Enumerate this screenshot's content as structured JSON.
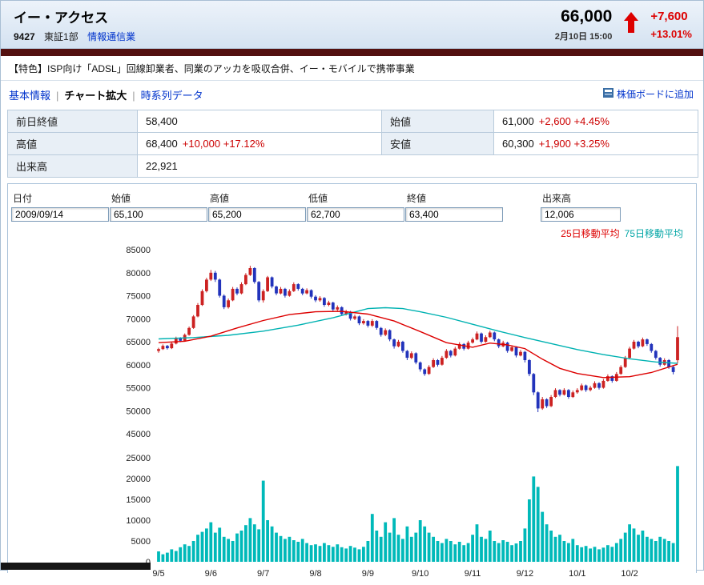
{
  "header": {
    "company_name": "イー・アクセス",
    "code": "9427",
    "exchange": "東証1部",
    "sector": "情報通信業",
    "price": "66,000",
    "datetime": "2月10日 15:00",
    "change": "+7,600",
    "change_pct": "+13.01%"
  },
  "feature": "【特色】ISP向け「ADSL」回線卸業者、同業のアッカを吸収合併、イー・モバイルで携帯事業",
  "nav": {
    "items": [
      {
        "label": "基本情報"
      },
      {
        "label": "チャート拡大"
      },
      {
        "label": "時系列データ"
      }
    ],
    "add_board": "株価ボードに追加"
  },
  "summary": {
    "prev_close_label": "前日終値",
    "prev_close": "58,400",
    "open_label": "始値",
    "open_value": "61,000",
    "open_change": "+2,600 +4.45%",
    "high_label": "高値",
    "high_value": "68,400",
    "high_change": "+10,000 +17.12%",
    "low_label": "安値",
    "low_value": "60,300",
    "low_change": "+1,900 +3.25%",
    "volume_label": "出来高",
    "volume_value": "22,921"
  },
  "quote": {
    "cols": [
      {
        "label": "日付",
        "value": "2009/09/14"
      },
      {
        "label": "始値",
        "value": "65,100"
      },
      {
        "label": "高値",
        "value": "65,200"
      },
      {
        "label": "低値",
        "value": "62,700"
      },
      {
        "label": "終値",
        "value": "63,400"
      },
      {
        "label": "出来高",
        "value": "12,006"
      }
    ]
  },
  "legend": {
    "ma25": "25日移動平均",
    "ma75": "75日移動平均"
  },
  "chart_data": {
    "type": "candlestick",
    "x_ticks": [
      "9/5",
      "9/6",
      "9/7",
      "9/8",
      "9/9",
      "9/10",
      "9/11",
      "9/12",
      "10/1",
      "10/2"
    ],
    "tick_interval": 12,
    "price_axis_ticks": [
      85000,
      80000,
      75000,
      70000,
      65000,
      60000,
      55000,
      50000,
      45000
    ],
    "volume_axis_ticks": [
      25000,
      20000,
      15000,
      10000,
      5000,
      0
    ],
    "colors": {
      "up": "#cc2222",
      "down": "#2233bb",
      "ma25": "#dd0000",
      "ma75": "#00b2b2",
      "volume": "#00b9b9"
    },
    "candles": [
      [
        63000,
        63700,
        62600,
        63400
      ],
      [
        63400,
        64400,
        63200,
        64100
      ],
      [
        64100,
        64300,
        63300,
        63600
      ],
      [
        63600,
        64900,
        63400,
        64600
      ],
      [
        64600,
        66100,
        64400,
        65800
      ],
      [
        65800,
        66000,
        64900,
        65200
      ],
      [
        65200,
        66800,
        65000,
        66500
      ],
      [
        66500,
        68300,
        66300,
        68000
      ],
      [
        68000,
        70800,
        67800,
        70500
      ],
      [
        70500,
        73400,
        70300,
        73000
      ],
      [
        73000,
        76400,
        72800,
        76000
      ],
      [
        76000,
        78900,
        75700,
        78500
      ],
      [
        78500,
        80600,
        78200,
        80000
      ],
      [
        80000,
        80400,
        78000,
        78500
      ],
      [
        78500,
        78700,
        74600,
        75000
      ],
      [
        75000,
        75300,
        72100,
        72500
      ],
      [
        72500,
        74400,
        72200,
        74000
      ],
      [
        74000,
        76900,
        73800,
        76500
      ],
      [
        76500,
        76800,
        75100,
        75500
      ],
      [
        75500,
        77900,
        75300,
        77500
      ],
      [
        77500,
        79900,
        77300,
        79500
      ],
      [
        79500,
        81500,
        79300,
        81000
      ],
      [
        81000,
        81200,
        77600,
        78000
      ],
      [
        78000,
        78200,
        73600,
        74000
      ],
      [
        74000,
        76400,
        73500,
        76000
      ],
      [
        76000,
        79300,
        75800,
        79000
      ],
      [
        79000,
        79200,
        76600,
        77000
      ],
      [
        77000,
        77200,
        75100,
        75500
      ],
      [
        75500,
        76900,
        75300,
        76500
      ],
      [
        76500,
        76700,
        74600,
        75000
      ],
      [
        75000,
        76400,
        74800,
        76000
      ],
      [
        76000,
        77900,
        75800,
        77500
      ],
      [
        77500,
        77700,
        76100,
        76500
      ],
      [
        76500,
        76700,
        75100,
        75500
      ],
      [
        75500,
        76600,
        75300,
        76200
      ],
      [
        76200,
        76400,
        74400,
        74800
      ],
      [
        74800,
        75100,
        73600,
        74000
      ],
      [
        74000,
        74900,
        73700,
        74500
      ],
      [
        74500,
        74700,
        72600,
        73000
      ],
      [
        73000,
        73900,
        72700,
        73500
      ],
      [
        73500,
        73700,
        71600,
        72000
      ],
      [
        72000,
        72900,
        71700,
        72500
      ],
      [
        72500,
        72700,
        70600,
        71000
      ],
      [
        71000,
        71900,
        70700,
        71500
      ],
      [
        71500,
        71700,
        69600,
        70000
      ],
      [
        70000,
        70900,
        69700,
        70500
      ],
      [
        70500,
        70700,
        68600,
        69000
      ],
      [
        69000,
        69900,
        68700,
        69500
      ],
      [
        69500,
        69700,
        68100,
        68500
      ],
      [
        68500,
        69900,
        68200,
        69500
      ],
      [
        69500,
        69700,
        67600,
        68000
      ],
      [
        68000,
        68200,
        66100,
        66500
      ],
      [
        66500,
        67900,
        66200,
        67500
      ],
      [
        67500,
        67700,
        65100,
        65500
      ],
      [
        65500,
        65700,
        63500,
        64000
      ],
      [
        64000,
        65400,
        63800,
        65000
      ],
      [
        65000,
        65200,
        62600,
        63000
      ],
      [
        63000,
        63200,
        61000,
        61500
      ],
      [
        61500,
        62900,
        61200,
        62500
      ],
      [
        62500,
        62700,
        60100,
        60500
      ],
      [
        60500,
        60700,
        58500,
        59000
      ],
      [
        59000,
        59200,
        57600,
        58000
      ],
      [
        58000,
        59900,
        57800,
        59500
      ],
      [
        59500,
        61400,
        59300,
        61000
      ],
      [
        61000,
        61200,
        59600,
        60000
      ],
      [
        60000,
        61900,
        59800,
        61500
      ],
      [
        61500,
        63400,
        61300,
        63000
      ],
      [
        63000,
        63200,
        61600,
        62000
      ],
      [
        62000,
        63900,
        61800,
        63500
      ],
      [
        63500,
        64900,
        63300,
        64500
      ],
      [
        64500,
        64700,
        63100,
        63500
      ],
      [
        63500,
        65200,
        63300,
        64800
      ],
      [
        64800,
        65900,
        64600,
        65500
      ],
      [
        65500,
        67200,
        65300,
        66800
      ],
      [
        66800,
        67000,
        64600,
        65000
      ],
      [
        65000,
        66400,
        64800,
        66000
      ],
      [
        66000,
        67400,
        65800,
        67000
      ],
      [
        67000,
        67200,
        65100,
        65500
      ],
      [
        65500,
        65700,
        63600,
        64000
      ],
      [
        64000,
        65200,
        63800,
        64800
      ],
      [
        64800,
        65000,
        62600,
        63000
      ],
      [
        63000,
        64200,
        62800,
        63800
      ],
      [
        63800,
        64000,
        61600,
        62000
      ],
      [
        62000,
        63200,
        61800,
        62800
      ],
      [
        62800,
        63000,
        60500,
        61000
      ],
      [
        61000,
        61200,
        57500,
        58000
      ],
      [
        58000,
        58200,
        53400,
        54000
      ],
      [
        54000,
        54200,
        49700,
        50500
      ],
      [
        50500,
        53000,
        50200,
        52500
      ],
      [
        52500,
        52700,
        50600,
        51000
      ],
      [
        51000,
        53400,
        50800,
        53000
      ],
      [
        53000,
        54900,
        52800,
        54500
      ],
      [
        54500,
        54700,
        53100,
        53500
      ],
      [
        53500,
        54900,
        53300,
        54500
      ],
      [
        54500,
        54700,
        52600,
        53000
      ],
      [
        53000,
        54400,
        52800,
        54000
      ],
      [
        54000,
        54900,
        53700,
        54500
      ],
      [
        54500,
        55900,
        54300,
        55500
      ],
      [
        55500,
        55700,
        54100,
        54500
      ],
      [
        54500,
        55400,
        54200,
        55000
      ],
      [
        55000,
        56400,
        54800,
        56000
      ],
      [
        56000,
        56200,
        54600,
        55000
      ],
      [
        55000,
        56900,
        54800,
        56500
      ],
      [
        56500,
        57900,
        56300,
        57500
      ],
      [
        57500,
        57700,
        56100,
        56500
      ],
      [
        56500,
        58400,
        56300,
        58000
      ],
      [
        58000,
        59900,
        57800,
        59500
      ],
      [
        59500,
        61900,
        59300,
        61500
      ],
      [
        61500,
        63900,
        61300,
        63500
      ],
      [
        63500,
        65400,
        63300,
        65000
      ],
      [
        65000,
        65200,
        63600,
        64000
      ],
      [
        64000,
        65900,
        63800,
        65500
      ],
      [
        65500,
        65700,
        64100,
        64500
      ],
      [
        64500,
        64700,
        62600,
        63000
      ],
      [
        63000,
        63200,
        61100,
        61500
      ],
      [
        61500,
        61700,
        59600,
        60000
      ],
      [
        60000,
        61400,
        59800,
        61000
      ],
      [
        61000,
        61200,
        59100,
        59500
      ],
      [
        59500,
        59700,
        57900,
        58400
      ],
      [
        61000,
        68400,
        60300,
        66000
      ]
    ],
    "volume": [
      2500,
      1800,
      2200,
      3000,
      2600,
      3500,
      4200,
      3800,
      5000,
      6500,
      7200,
      8000,
      9500,
      7000,
      8200,
      6000,
      5500,
      5000,
      6800,
      7500,
      8800,
      10500,
      9000,
      7800,
      19500,
      10000,
      8500,
      7000,
      6200,
      5500,
      6000,
      5200,
      4800,
      5500,
      4500,
      4000,
      4200,
      3800,
      4500,
      4000,
      3600,
      4200,
      3500,
      3200,
      3800,
      3400,
      3000,
      3600,
      5000,
      11500,
      7500,
      6000,
      9500,
      7000,
      10500,
      6500,
      5500,
      8500,
      6000,
      7000,
      10000,
      8500,
      7000,
      6000,
      5000,
      4500,
      5500,
      5000,
      4200,
      4800,
      4000,
      4500,
      6500,
      9000,
      6000,
      5500,
      7500,
      5000,
      4500,
      5200,
      4800,
      4000,
      4400,
      5000,
      8000,
      15000,
      20500,
      18000,
      12000,
      9000,
      7500,
      6000,
      6500,
      5000,
      4500,
      5500,
      4000,
      3500,
      3800,
      3200,
      3600,
      3000,
      3400,
      4000,
      3600,
      4500,
      5500,
      7000,
      9000,
      8000,
      6500,
      7500,
      6000,
      5500,
      5000,
      6000,
      5500,
      5000,
      4500,
      23000
    ],
    "ma25": {
      "name": "25日移動平均",
      "points": [
        [
          0,
          64800
        ],
        [
          6,
          65100
        ],
        [
          12,
          66200
        ],
        [
          18,
          68000
        ],
        [
          24,
          69600
        ],
        [
          30,
          70900
        ],
        [
          36,
          71500
        ],
        [
          42,
          71600
        ],
        [
          48,
          71000
        ],
        [
          54,
          69500
        ],
        [
          60,
          67200
        ],
        [
          66,
          64800
        ],
        [
          72,
          63800
        ],
        [
          76,
          64700
        ],
        [
          80,
          64300
        ],
        [
          84,
          63500
        ],
        [
          88,
          61200
        ],
        [
          92,
          59200
        ],
        [
          96,
          58100
        ],
        [
          102,
          57200
        ],
        [
          108,
          57400
        ],
        [
          113,
          58300
        ],
        [
          119,
          60100
        ]
      ]
    },
    "ma75": {
      "name": "75日移動平均",
      "points": [
        [
          0,
          65600
        ],
        [
          8,
          65900
        ],
        [
          16,
          66400
        ],
        [
          24,
          67300
        ],
        [
          32,
          68600
        ],
        [
          40,
          70200
        ],
        [
          44,
          71200
        ],
        [
          48,
          72200
        ],
        [
          52,
          72400
        ],
        [
          56,
          72200
        ],
        [
          60,
          71500
        ],
        [
          66,
          70300
        ],
        [
          72,
          68800
        ],
        [
          78,
          67300
        ],
        [
          84,
          65900
        ],
        [
          90,
          64600
        ],
        [
          96,
          63300
        ],
        [
          102,
          62200
        ],
        [
          108,
          61300
        ],
        [
          114,
          60600
        ],
        [
          119,
          60300
        ]
      ]
    }
  }
}
